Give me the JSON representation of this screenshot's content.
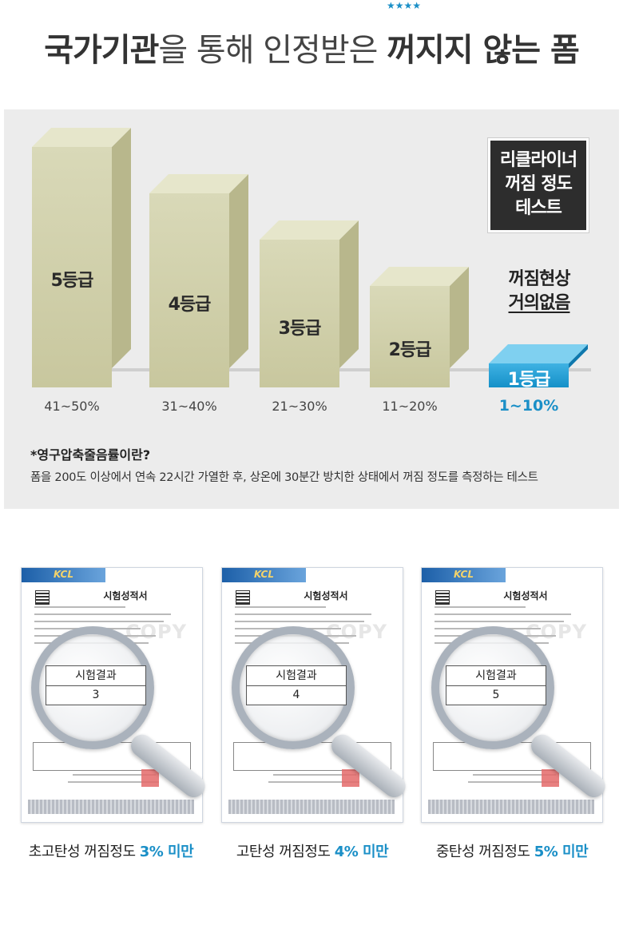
{
  "header": {
    "part1": "국가기관",
    "part2": "을 통해 인정받은 ",
    "part3": "꺼지지 않는 폼",
    "stars": "★★★★"
  },
  "chart_data": {
    "type": "bar",
    "categories": [
      "5등급",
      "4등급",
      "3등급",
      "2등급",
      "1등급"
    ],
    "x_labels": [
      "41~50%",
      "31~40%",
      "21~30%",
      "11~20%",
      "1~10%"
    ],
    "values": [
      5,
      4,
      3,
      2,
      1
    ],
    "title": "리클라이너 꺼짐 정도 테스트",
    "highlight": "1등급",
    "highlight_color": "#1a8fc7",
    "bar_color": "#c8c79e"
  },
  "test_box": {
    "line1": "리클라이너",
    "line2": "꺼짐 정도",
    "line3": "테스트"
  },
  "no_break": {
    "line1": "꺼짐현상",
    "line2": "거의없음"
  },
  "note": {
    "title": "*영구압축줄음률이란?",
    "body": "폼을 200도 이상에서 연속 22시간 가열한 후, 상온에 30분간 방치한 상태에서 꺼짐 정도를 측정하는 테스트"
  },
  "certificates": [
    {
      "doc_title": "시험성적서",
      "result_label": "시험결과",
      "result_value": "3",
      "caption_prefix": "초고탄성 꺼짐정도 ",
      "caption_value": "3% 미만"
    },
    {
      "doc_title": "시험성적서",
      "result_label": "시험결과",
      "result_value": "4",
      "caption_prefix": "고탄성 꺼짐정도 ",
      "caption_value": "4% 미만"
    },
    {
      "doc_title": "시험성적서",
      "result_label": "시험결과",
      "result_value": "5",
      "caption_prefix": "중탄성 꺼짐정도 ",
      "caption_value": "5% 미만"
    }
  ],
  "cert_logo": "KCL",
  "copy_mark": "COPY"
}
